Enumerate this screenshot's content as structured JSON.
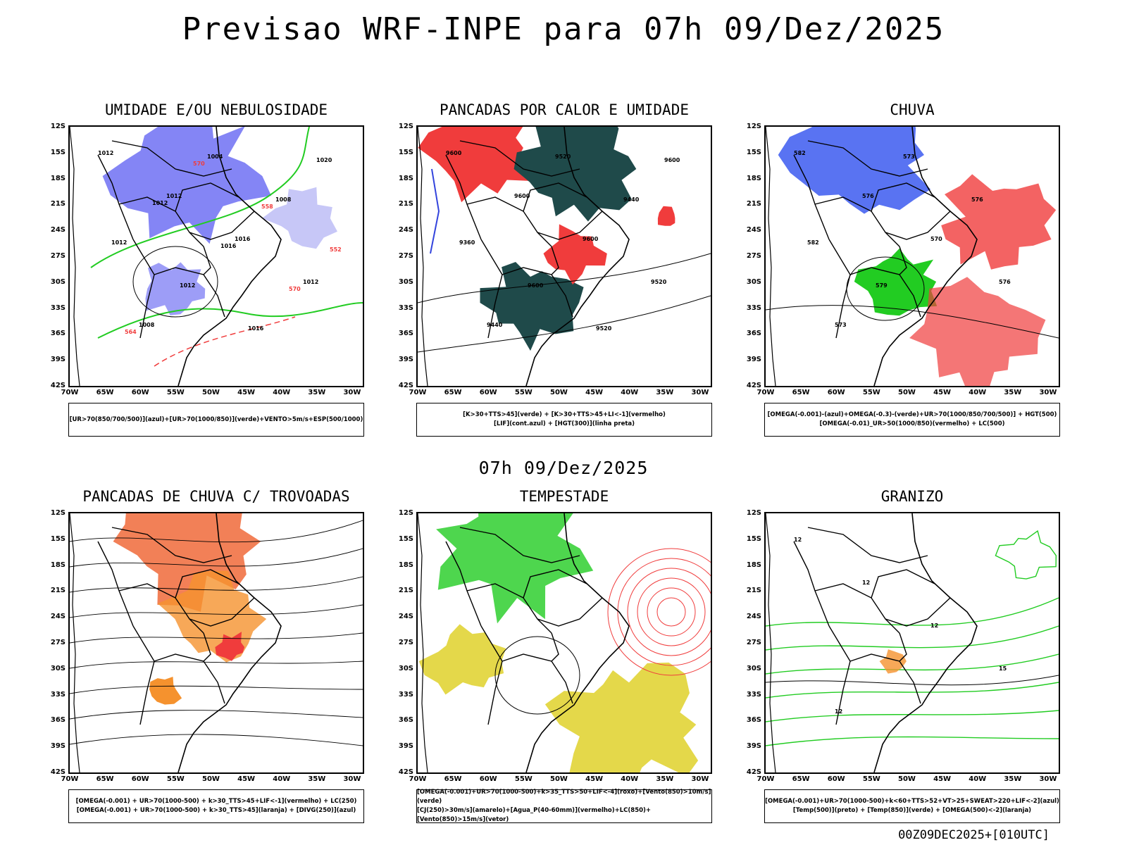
{
  "header": {
    "title": "Previsao WRF-INPE  para 07h 09/Dez/2025"
  },
  "middle": {
    "timestamp": "07h 09/Dez/2025"
  },
  "footer": {
    "run_label": "00Z09DEC2025+[010UTC]"
  },
  "axes": {
    "lat_labels": [
      "12S",
      "15S",
      "18S",
      "21S",
      "24S",
      "27S",
      "30S",
      "33S",
      "36S",
      "39S",
      "42S"
    ],
    "lon_labels": [
      "70W",
      "65W",
      "60W",
      "55W",
      "50W",
      "45W",
      "40W",
      "35W",
      "30W"
    ]
  },
  "colors": {
    "blue": "#5b5cf2",
    "green": "#22cc22",
    "red": "#f03c3c",
    "teal": "#1f4a4a",
    "orange": "#f5922e",
    "yellow": "#e4d84a"
  },
  "panels": [
    {
      "id": "umidade",
      "title": "UMIDADE E/OU NEBULOSIDADE",
      "legend": [
        "[UR>70(850/700/500)](azul)+[UR>70(1000/850)](verde)+VENTO>5m/s+ESP(500/1000)"
      ],
      "labels": [
        "1012",
        "1012",
        "1016",
        "1012",
        "1008",
        "1004",
        "1008",
        "1012",
        "1012",
        "1016",
        "1020",
        "1012",
        "1016",
        "570",
        "564",
        "570",
        "558",
        "552"
      ]
    },
    {
      "id": "pancadas-calor",
      "title": "PANCADAS POR CALOR E UMIDADE",
      "legend": [
        "[K>30+TTS>45](verde) + [K>30+TTS>45+LI<-1](vermelho)",
        "[LIF](cont.azul) + [HGT(300)](linha preta)"
      ],
      "labels": [
        "9600",
        "9600",
        "9600",
        "9520",
        "9440",
        "9520",
        "9440",
        "9360",
        "9600",
        "9520",
        "9600"
      ]
    },
    {
      "id": "chuva",
      "title": "CHUVA",
      "legend": [
        "[OMEGA(-0.001)-(azul)+OMEGA(-0.3)-(verde)+UR>70(1000/850/700/500)] + HGT(500)",
        "[OMEGA(-0.01)_UR>50(1000/850)(vermelho) + LC(500)"
      ],
      "labels": [
        "582",
        "576",
        "570",
        "576",
        "573",
        "573",
        "576",
        "582",
        "579"
      ]
    },
    {
      "id": "pancadas-trovoadas",
      "title": "PANCADAS DE CHUVA C/ TROVOADAS",
      "legend": [
        "[OMEGA(-0.001) + UR>70(1000-500) + k>30_TTS>45+LIF<-1](vermelho) + LC(250)",
        "[OMEGA(-0.001) + UR>70(1000-500) + k>30_TTS>45](laranja) + [DIVG(250)](azul)"
      ],
      "labels": []
    },
    {
      "id": "tempestade",
      "title": "TEMPESTADE",
      "legend": [
        "[OMEGA(-0.001)+UR>70(1000-500)+k>35_TTS>50+LIF<-4](roxo)+[Vento(850)>10m/s](verde)",
        "[CJ(250)>30m/s](amarelo)+[Agua_P(40-60mm)](vermelho)+LC(850)+[Vento(850)>15m/s](vetor)"
      ],
      "labels": []
    },
    {
      "id": "granizo",
      "title": "GRANIZO",
      "legend": [
        "[OMEGA(-0.001)+UR>70(1000-500)+k<60+TTS>52+VT>25+SWEAT>220+LIF<-2](azul)",
        "[Temp(500)](preto) + [Temp(850)](verde) + [OMEGA(500)<-2](laranja)"
      ],
      "labels": [
        "12",
        "12",
        "12",
        "15",
        "12"
      ]
    }
  ]
}
